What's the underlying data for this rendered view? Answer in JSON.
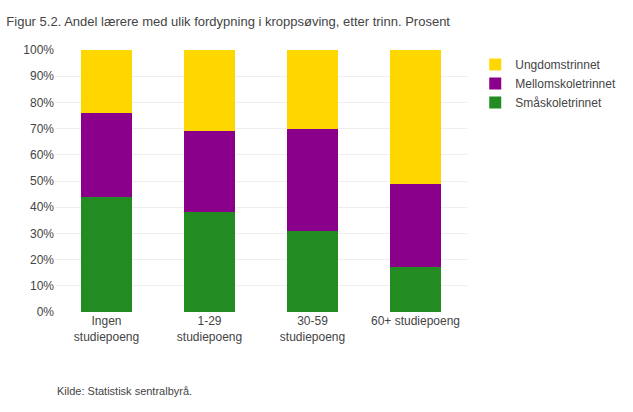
{
  "chart_data": {
    "type": "bar",
    "stacked": true,
    "title": "Figur 5.2. Andel lærere med ulik fordypning i kroppsøving, etter trinn. Prosent",
    "annotations": [
      "Kilde: Statistisk sentralbyrå."
    ],
    "categories": [
      "Ingen\nstudiepoeng",
      "1-29\nstudiepoeng",
      "30-59\nstudiepoeng",
      "60+ studiepoeng"
    ],
    "series": [
      {
        "name": "Småskoletrinnet",
        "color": "#228B22",
        "values": [
          44,
          38,
          31,
          17
        ]
      },
      {
        "name": "Mellomskoletrinnet",
        "color": "#8B008B",
        "values": [
          32,
          31,
          39,
          32
        ]
      },
      {
        "name": "Ungdomstrinnet",
        "color": "#FFD700",
        "values": [
          24,
          31,
          30,
          51
        ]
      }
    ],
    "ylim": [
      0,
      100
    ],
    "yticks": [
      {
        "value": 0,
        "label": "0%"
      },
      {
        "value": 10,
        "label": "10%"
      },
      {
        "value": 20,
        "label": "20%"
      },
      {
        "value": 30,
        "label": "30%"
      },
      {
        "value": 40,
        "label": "40%"
      },
      {
        "value": 50,
        "label": "50%"
      },
      {
        "value": 60,
        "label": "60%"
      },
      {
        "value": 70,
        "label": "70%"
      },
      {
        "value": 80,
        "label": "80%"
      },
      {
        "value": 90,
        "label": "90%"
      },
      {
        "value": 100,
        "label": "100%"
      }
    ],
    "grid": true,
    "legend": "right"
  }
}
